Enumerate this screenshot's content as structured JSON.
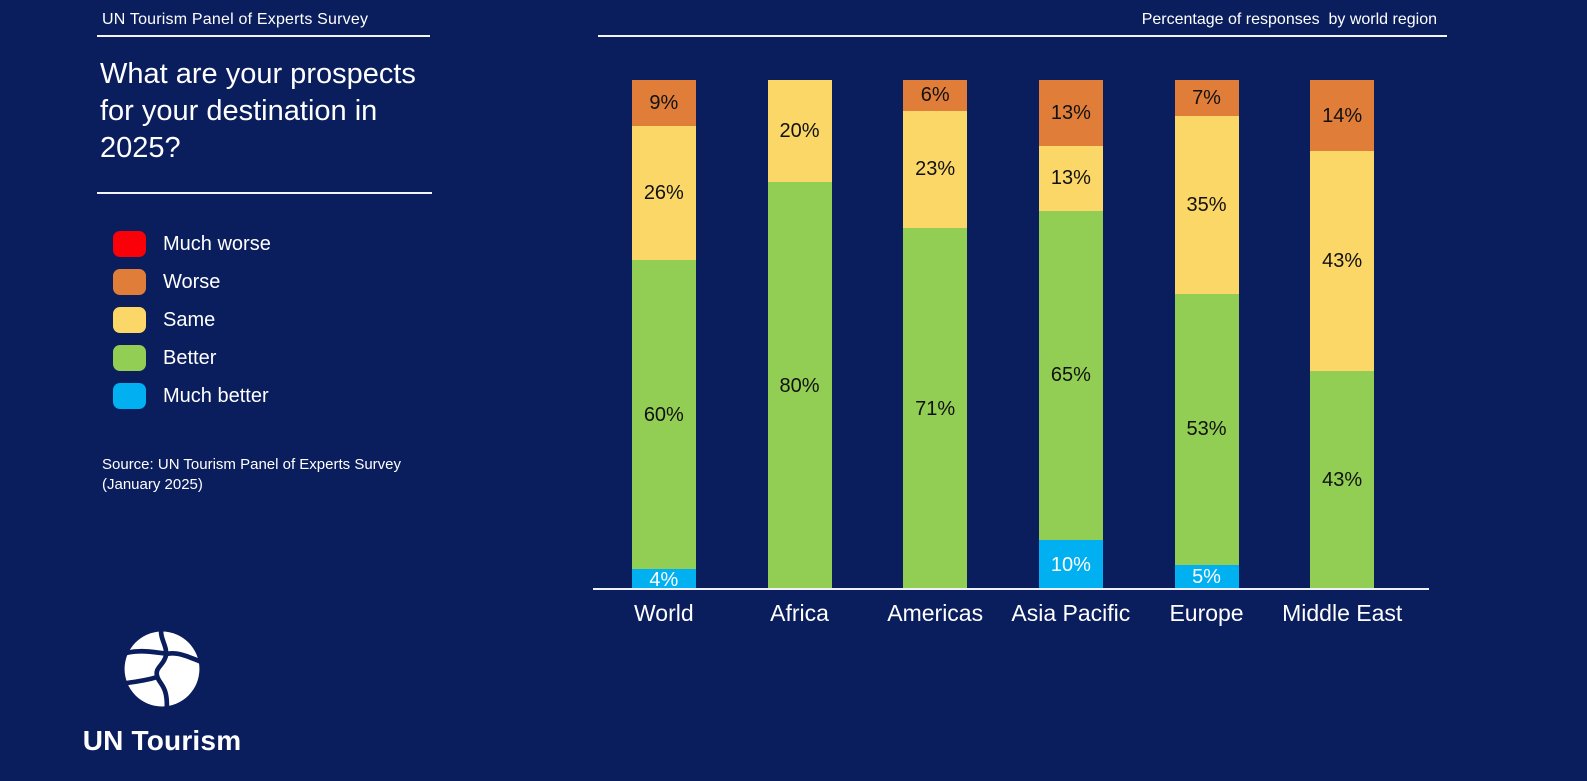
{
  "page": {
    "background": "#0A1D5C"
  },
  "left_panel": {
    "header": "UN Tourism Panel of Experts Survey",
    "question": "What are your prospects for your destination in 2025?",
    "source": "Source: UN Tourism Panel of Experts Survey (January 2025)",
    "logo_text": "UN Tourism"
  },
  "chart_header": "Percentage of responses  by world region",
  "legend": [
    {
      "label": "Much worse",
      "color": "#FA0009"
    },
    {
      "label": "Worse",
      "color": "#E07E39"
    },
    {
      "label": "Same",
      "color": "#FBD767"
    },
    {
      "label": "Better",
      "color": "#92CE54"
    },
    {
      "label": "Much better",
      "color": "#00B0F0"
    }
  ],
  "chart_data": {
    "type": "bar",
    "stacked": true,
    "title": "Percentage of responses  by world region",
    "categories": [
      "World",
      "Africa",
      "Americas",
      "Asia Pacific",
      "Europe",
      "Middle East"
    ],
    "series": [
      {
        "name": "Much worse",
        "color": "#FA0009",
        "label_color": "#111111",
        "values": [
          0,
          0,
          0,
          0,
          0,
          0
        ]
      },
      {
        "name": "Worse",
        "color": "#E07E39",
        "label_color": "#111111",
        "values": [
          9,
          0,
          6,
          13,
          7,
          14
        ]
      },
      {
        "name": "Same",
        "color": "#FBD767",
        "label_color": "#111111",
        "values": [
          26,
          20,
          23,
          13,
          35,
          43
        ]
      },
      {
        "name": "Better",
        "color": "#92CE54",
        "label_color": "#111111",
        "values": [
          60,
          80,
          71,
          65,
          53,
          43
        ]
      },
      {
        "name": "Much better",
        "color": "#00B0F0",
        "label_color": "#FFFFFF",
        "values": [
          4,
          0,
          0,
          10,
          5,
          0
        ]
      }
    ],
    "value_suffix": "%",
    "ylim": [
      0,
      100
    ],
    "grid": false,
    "legend_position": "left"
  }
}
